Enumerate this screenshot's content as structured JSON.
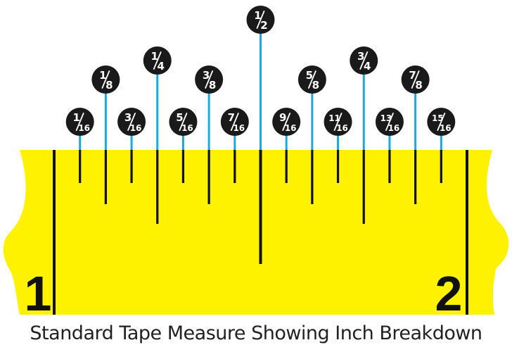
{
  "caption": "Standard Tape Measure Showing Inch Breakdown",
  "inch_labels": [
    "1",
    "2"
  ],
  "colors": {
    "tape": "#FFF200",
    "tick": "#111111",
    "pointer": "#1AA8E0",
    "badge": "#1a1a1a",
    "badge_text": "#ffffff"
  },
  "marks": [
    {
      "sixteenths": 1,
      "num": "1",
      "den": "16"
    },
    {
      "sixteenths": 2,
      "num": "1",
      "den": "8"
    },
    {
      "sixteenths": 3,
      "num": "3",
      "den": "16"
    },
    {
      "sixteenths": 4,
      "num": "1",
      "den": "4"
    },
    {
      "sixteenths": 5,
      "num": "5",
      "den": "16"
    },
    {
      "sixteenths": 6,
      "num": "3",
      "den": "8"
    },
    {
      "sixteenths": 7,
      "num": "7",
      "den": "16"
    },
    {
      "sixteenths": 8,
      "num": "1",
      "den": "2"
    },
    {
      "sixteenths": 9,
      "num": "9",
      "den": "16"
    },
    {
      "sixteenths": 10,
      "num": "5",
      "den": "8"
    },
    {
      "sixteenths": 11,
      "num": "11",
      "den": "16"
    },
    {
      "sixteenths": 12,
      "num": "3",
      "den": "4"
    },
    {
      "sixteenths": 13,
      "num": "13",
      "den": "16"
    },
    {
      "sixteenths": 14,
      "num": "7",
      "den": "8"
    },
    {
      "sixteenths": 15,
      "num": "15",
      "den": "16"
    }
  ]
}
